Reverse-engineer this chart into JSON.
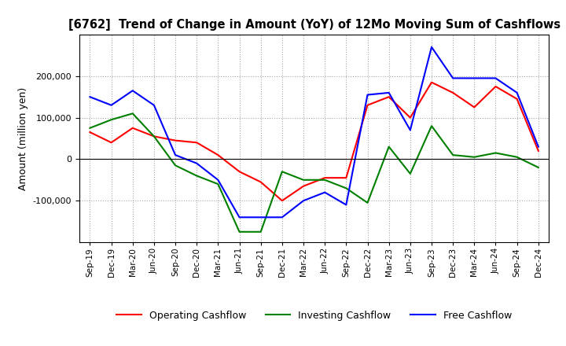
{
  "title": "[6762]  Trend of Change in Amount (YoY) of 12Mo Moving Sum of Cashflows",
  "ylabel": "Amount (million yen)",
  "ylim": [
    -200000,
    300000
  ],
  "yticks": [
    -100000,
    0,
    100000,
    200000
  ],
  "legend": [
    "Operating Cashflow",
    "Investing Cashflow",
    "Free Cashflow"
  ],
  "colors": [
    "red",
    "green",
    "blue"
  ],
  "x_labels": [
    "Sep-19",
    "Dec-19",
    "Mar-20",
    "Jun-20",
    "Sep-20",
    "Dec-20",
    "Mar-21",
    "Jun-21",
    "Sep-21",
    "Dec-21",
    "Mar-22",
    "Jun-22",
    "Sep-22",
    "Dec-22",
    "Mar-23",
    "Jun-23",
    "Sep-23",
    "Dec-23",
    "Mar-24",
    "Jun-24",
    "Sep-24",
    "Dec-24"
  ],
  "operating": [
    65000,
    40000,
    75000,
    55000,
    45000,
    40000,
    10000,
    -30000,
    -55000,
    -100000,
    -65000,
    -45000,
    -45000,
    130000,
    150000,
    100000,
    185000,
    160000,
    125000,
    175000,
    145000,
    20000
  ],
  "investing": [
    75000,
    95000,
    110000,
    55000,
    -15000,
    -40000,
    -60000,
    -175000,
    -175000,
    -30000,
    -50000,
    -50000,
    -70000,
    -105000,
    30000,
    -35000,
    80000,
    10000,
    5000,
    15000,
    5000,
    -20000
  ],
  "free": [
    150000,
    130000,
    165000,
    130000,
    10000,
    -10000,
    -50000,
    -140000,
    -140000,
    -140000,
    -100000,
    -80000,
    -110000,
    155000,
    160000,
    70000,
    270000,
    195000,
    195000,
    195000,
    160000,
    30000
  ]
}
